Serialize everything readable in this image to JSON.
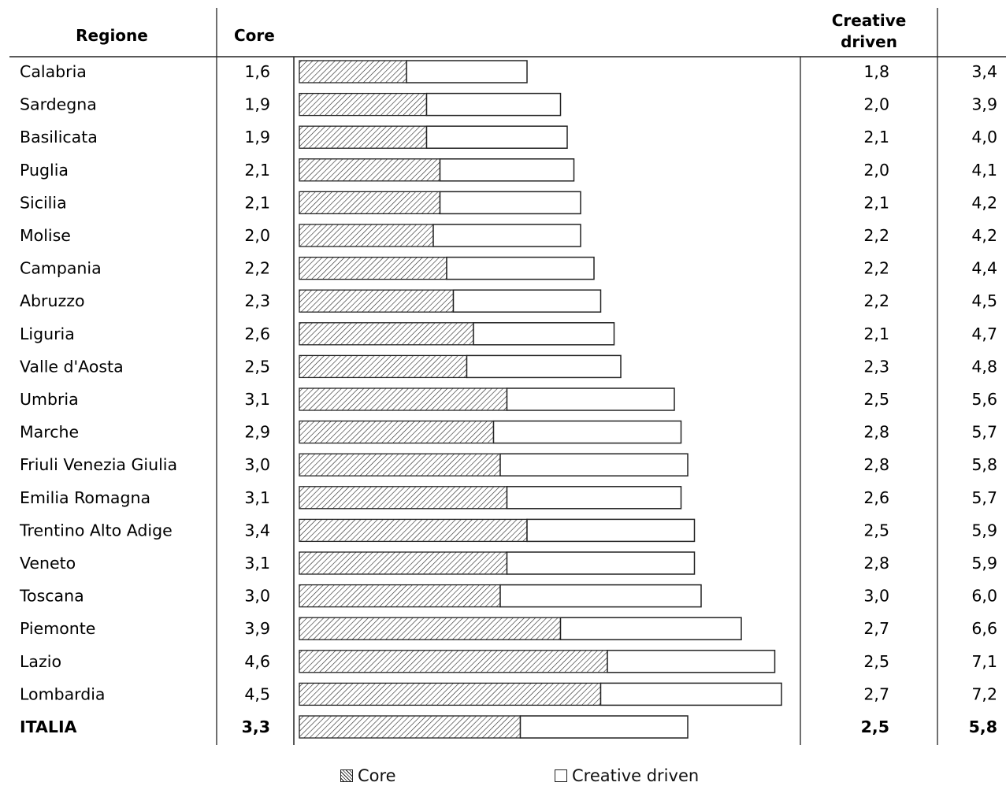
{
  "headers": {
    "regione": "Regione",
    "core": "Core",
    "creative_line1": "Creative",
    "creative_line2": "driven",
    "total": ""
  },
  "legend": {
    "core": "Core",
    "creative": "Creative driven"
  },
  "colors": {
    "line": "#222222",
    "bar_fill": "#ffffff",
    "hatch": "#222222"
  },
  "chart_data": {
    "type": "bar",
    "orientation": "horizontal",
    "stacked": true,
    "categories": [
      "Calabria",
      "Sardegna",
      "Basilicata",
      "Puglia",
      "Sicilia",
      "Molise",
      "Campania",
      "Abruzzo",
      "Liguria",
      "Valle d'Aosta",
      "Umbria",
      "Marche",
      "Friuli Venezia Giulia",
      "Emilia Romagna",
      "Trentino Alto Adige",
      "Veneto",
      "Toscana",
      "Piemonte",
      "Lazio",
      "Lombardia",
      "ITALIA"
    ],
    "core_labels": [
      "1,6",
      "1,9",
      "1,9",
      "2,1",
      "2,1",
      "2,0",
      "2,2",
      "2,3",
      "2,6",
      "2,5",
      "3,1",
      "2,9",
      "3,0",
      "3,1",
      "3,4",
      "3,1",
      "3,0",
      "3,9",
      "4,6",
      "4,5",
      "3,3"
    ],
    "creative_labels": [
      "1,8",
      "2,0",
      "2,1",
      "2,0",
      "2,1",
      "2,2",
      "2,2",
      "2,2",
      "2,1",
      "2,3",
      "2,5",
      "2,8",
      "2,8",
      "2,6",
      "2,5",
      "2,8",
      "3,0",
      "2,7",
      "2,5",
      "2,7",
      "2,5"
    ],
    "total_labels": [
      "3,4",
      "3,9",
      "4,0",
      "4,1",
      "4,2",
      "4,2",
      "4,4",
      "4,5",
      "4,7",
      "4,8",
      "5,6",
      "5,7",
      "5,8",
      "5,7",
      "5,9",
      "5,9",
      "6,0",
      "6,6",
      "7,1",
      "7,2",
      "5,8"
    ],
    "series": [
      {
        "name": "Core",
        "values": [
          1.6,
          1.9,
          1.9,
          2.1,
          2.1,
          2.0,
          2.2,
          2.3,
          2.6,
          2.5,
          3.1,
          2.9,
          3.0,
          3.1,
          3.4,
          3.1,
          3.0,
          3.9,
          4.6,
          4.5,
          3.3
        ]
      },
      {
        "name": "Creative driven",
        "values": [
          1.8,
          2.0,
          2.1,
          2.0,
          2.1,
          2.2,
          2.2,
          2.2,
          2.1,
          2.3,
          2.5,
          2.8,
          2.8,
          2.6,
          2.5,
          2.8,
          3.0,
          2.7,
          2.5,
          2.7,
          2.5
        ]
      }
    ],
    "bold_rows": [
      "ITALIA"
    ],
    "xlim": [
      0,
      8.5
    ],
    "legend_position": "bottom"
  }
}
